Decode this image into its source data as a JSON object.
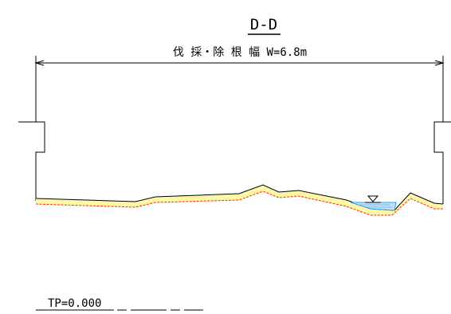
{
  "section": {
    "title": "D-D",
    "width_label": "伐 採・除 根 幅 W=6.8m"
  },
  "elevation": {
    "label": "TP=0.000"
  },
  "colors": {
    "line": "#000000",
    "ground_fill": "#fff7a8",
    "ground_edge": "#ff2a00",
    "water": "#3aa0e0",
    "water_fill": "#bfe0f5"
  }
}
